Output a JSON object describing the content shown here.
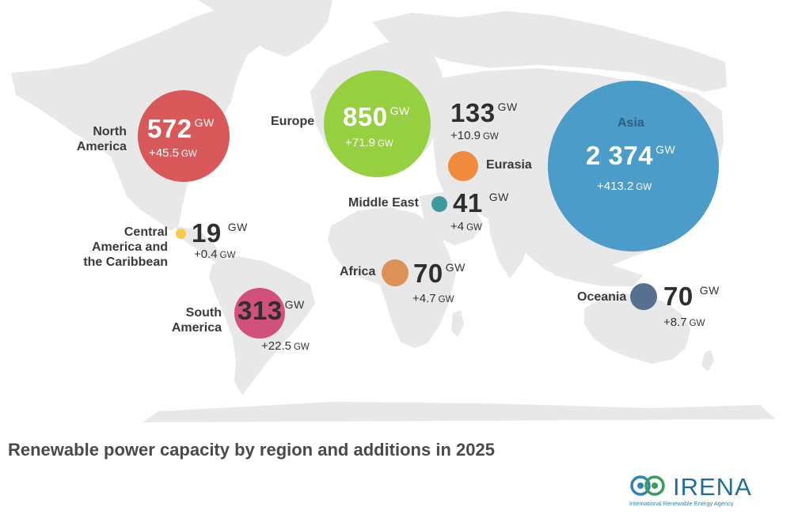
{
  "title": "Renewable power capacity by region and additions in 2025",
  "unit": "GW",
  "regions": {
    "north_america": {
      "name": "North America",
      "capacity": "572",
      "addition": "+45.5"
    },
    "europe": {
      "name": "Europe",
      "capacity": "850",
      "addition": "+71.9"
    },
    "eurasia": {
      "name": "Eurasia",
      "capacity": "133",
      "addition": "+10.9"
    },
    "asia": {
      "name": "Asia",
      "capacity": "2 374",
      "addition": "+413.2"
    },
    "middle_east": {
      "name": "Middle East",
      "capacity": "41",
      "addition": "+4"
    },
    "central_america": {
      "name": "Central America and the Caribbean",
      "capacity": "19",
      "addition": "+0.4"
    },
    "africa": {
      "name": "Africa",
      "capacity": "70",
      "addition": "+4.7"
    },
    "south_america": {
      "name": "South America",
      "capacity": "313",
      "addition": "+22.5"
    },
    "oceania": {
      "name": "Oceania",
      "capacity": "70",
      "addition": "+8.7"
    }
  },
  "colors": {
    "north_america": "#d9595b",
    "europe": "#96cf3f",
    "eurasia": "#f08a3c",
    "asia": "#4b9cc9",
    "middle_east": "#3f9a9b",
    "central_america": "#f6c94a",
    "africa": "#dc9156",
    "south_america": "#d1517a",
    "oceania": "#58708f",
    "map_land": "#e8e8e8"
  },
  "logo": {
    "name": "IRENA",
    "subtitle": "International Renewable Energy Agency"
  }
}
